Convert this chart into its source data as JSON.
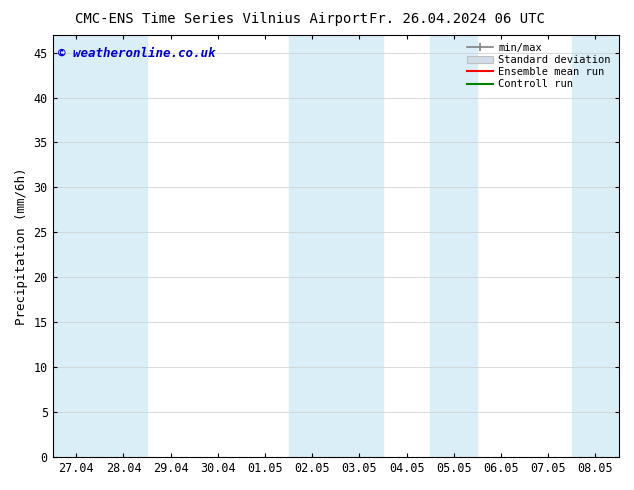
{
  "title_left": "CMC-ENS Time Series Vilnius Airport",
  "title_right": "Fr. 26.04.2024 06 UTC",
  "ylabel": "Precipitation (mm/6h)",
  "watermark": "© weatheronline.co.uk",
  "xlim": [
    -0.5,
    11.5
  ],
  "ylim": [
    0,
    47
  ],
  "yticks": [
    0,
    5,
    10,
    15,
    20,
    25,
    30,
    35,
    40,
    45
  ],
  "xtick_labels": [
    "27.04",
    "28.04",
    "29.04",
    "30.04",
    "01.05",
    "02.05",
    "03.05",
    "04.05",
    "05.05",
    "06.05",
    "07.05",
    "08.05"
  ],
  "shaded_bands": [
    [
      -0.5,
      0.5
    ],
    [
      0.5,
      1.5
    ],
    [
      4.5,
      5.5
    ],
    [
      5.5,
      6.5
    ],
    [
      7.5,
      8.5
    ],
    [
      10.5,
      11.5
    ]
  ],
  "band_color": "#daeef8",
  "band_alpha": 1.0,
  "bg_color": "#ffffff",
  "legend_items": [
    "min/max",
    "Standard deviation",
    "Ensemble mean run",
    "Controll run"
  ],
  "legend_line_colors": [
    "#808080",
    "#c0c0c0",
    "#ff0000",
    "#008000"
  ],
  "title_fontsize": 10,
  "axis_label_fontsize": 9,
  "tick_fontsize": 8.5,
  "watermark_color": "#0000cc",
  "watermark_fontsize": 9,
  "border_color": "#000000"
}
